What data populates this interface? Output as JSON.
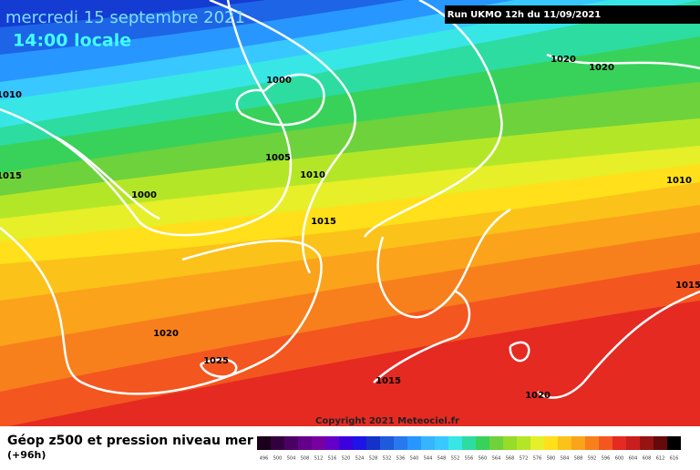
{
  "header": {
    "date": "mercredi 15 septembre 2021",
    "time": "14:00 locale",
    "run": "Run UKMO 12h du 11/09/2021"
  },
  "isobars": {
    "labels": [
      "1020",
      "1020",
      "1010",
      "1000",
      "1015",
      "1005",
      "1010",
      "1000",
      "1015",
      "1010",
      "1015",
      "1020",
      "1025",
      "1015",
      "1020"
    ]
  },
  "copyright": "Copyright 2021 Meteociel.fr",
  "legend": {
    "title": "Géop z500 et pression niveau mer",
    "subtitle": "(+96h)",
    "scale": [
      496,
      500,
      504,
      508,
      512,
      516,
      520,
      524,
      528,
      532,
      536,
      540,
      544,
      548,
      552,
      556,
      560,
      564,
      568,
      572,
      576,
      580,
      584,
      588,
      592,
      596,
      600,
      604,
      608,
      612,
      616
    ]
  }
}
